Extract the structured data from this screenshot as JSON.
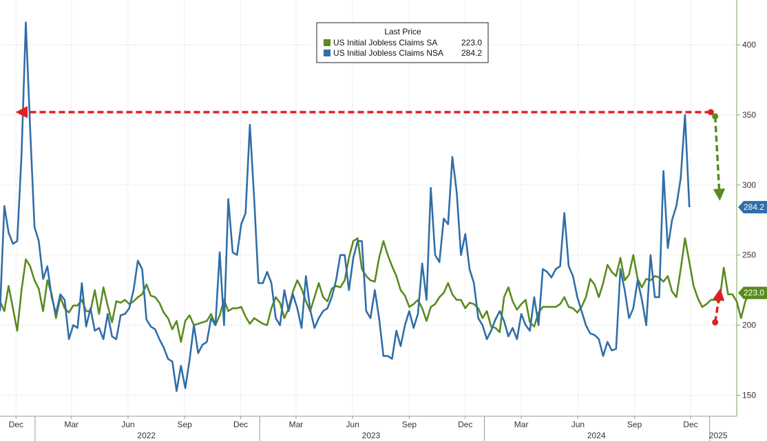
{
  "chart_data": {
    "type": "line",
    "ylim": [
      135,
      432
    ],
    "y_ticks": [
      150,
      200,
      250,
      300,
      350,
      400
    ],
    "x_range": [
      "2021-11-05",
      "2025-02-14"
    ],
    "x_month_ticks": [
      {
        "label": "Dec",
        "date": "2021-12-01"
      },
      {
        "label": "Mar",
        "date": "2022-03-01"
      },
      {
        "label": "Jun",
        "date": "2022-06-01"
      },
      {
        "label": "Sep",
        "date": "2022-09-01"
      },
      {
        "label": "Dec",
        "date": "2022-12-01"
      },
      {
        "label": "Mar",
        "date": "2023-03-01"
      },
      {
        "label": "Jun",
        "date": "2023-06-01"
      },
      {
        "label": "Sep",
        "date": "2023-09-01"
      },
      {
        "label": "Dec",
        "date": "2023-12-01"
      },
      {
        "label": "Mar",
        "date": "2024-03-01"
      },
      {
        "label": "Jun",
        "date": "2024-06-01"
      },
      {
        "label": "Sep",
        "date": "2024-09-01"
      },
      {
        "label": "Dec",
        "date": "2024-12-01"
      }
    ],
    "x_year_labels": [
      {
        "label": "2022",
        "date": "2022-07-01"
      },
      {
        "label": "2023",
        "date": "2023-07-01"
      },
      {
        "label": "2024",
        "date": "2024-07-01"
      },
      {
        "label": "2025",
        "date": "2025-01-15"
      }
    ],
    "x_year_dividers": [
      "2022-01-01",
      "2023-01-01",
      "2024-01-01",
      "2025-01-01"
    ],
    "grid": true,
    "legend": {
      "placement": "top-center",
      "title": "Last Price",
      "entries": [
        {
          "name": "US Initial Jobless Claims SA",
          "last_value": "223.0"
        },
        {
          "name": "US Initial Jobless Claims NSA",
          "last_value": "284.2"
        }
      ]
    },
    "series": [
      {
        "name": "US Initial Jobless Claims SA",
        "color": "#5a8a1e",
        "last_value_label": "223.0",
        "x_start": "2021-11-05",
        "x_step_days": 7,
        "values": [
          217,
          210,
          228,
          212,
          196,
          225,
          247,
          242,
          232,
          226,
          210,
          232,
          222,
          205,
          220,
          212,
          209,
          214,
          214,
          218,
          210,
          210,
          225,
          208,
          227,
          214,
          202,
          217,
          216,
          218,
          215,
          217,
          220,
          222,
          229,
          221,
          220,
          216,
          209,
          205,
          197,
          203,
          188,
          203,
          207,
          200,
          201,
          202,
          203,
          208,
          200,
          207,
          218,
          210,
          212,
          212,
          213,
          206,
          201,
          205,
          203,
          201,
          200,
          212,
          220,
          216,
          205,
          212,
          224,
          232,
          226,
          217,
          210,
          220,
          230,
          220,
          217,
          226,
          228,
          227,
          232,
          248,
          260,
          262,
          240,
          235,
          232,
          231,
          248,
          260,
          250,
          242,
          235,
          225,
          221,
          213,
          215,
          218,
          212,
          203,
          213,
          215,
          220,
          223,
          230,
          222,
          218,
          218,
          212,
          216,
          215,
          212,
          205,
          210,
          199,
          198,
          195,
          220,
          227,
          217,
          211,
          215,
          218,
          202,
          199,
          209,
          213,
          213,
          213,
          213,
          215,
          220,
          213,
          212,
          209,
          213,
          220,
          233,
          229,
          220,
          230,
          243,
          238,
          235,
          248,
          232,
          236,
          250,
          233,
          227,
          233,
          232,
          235,
          234,
          231,
          235,
          224,
          220,
          240,
          262,
          245,
          228,
          219,
          213,
          215,
          218,
          218,
          217,
          241,
          222,
          222,
          217,
          205,
          217,
          223
        ]
      },
      {
        "name": "US Initial Jobless Claims NSA",
        "color": "#2f6ea8",
        "last_value_label": "284.2",
        "x_start": "2021-11-05",
        "x_step_days": 7,
        "values": [
          210,
          285,
          266,
          258,
          260,
          322,
          416,
          340,
          270,
          260,
          233,
          242,
          220,
          208,
          222,
          218,
          190,
          200,
          198,
          230,
          199,
          212,
          196,
          198,
          190,
          208,
          192,
          190,
          207,
          208,
          212,
          225,
          246,
          240,
          204,
          199,
          197,
          190,
          184,
          176,
          174,
          153,
          171,
          155,
          175,
          200,
          180,
          186,
          188,
          205,
          200,
          252,
          200,
          290,
          252,
          250,
          272,
          280,
          343,
          290,
          230,
          230,
          238,
          230,
          205,
          200,
          225,
          210,
          222,
          212,
          198,
          235,
          211,
          198,
          205,
          210,
          212,
          220,
          232,
          250,
          250,
          225,
          248,
          260,
          260,
          210,
          205,
          225,
          205,
          178,
          178,
          176,
          196,
          185,
          200,
          210,
          198,
          208,
          244,
          218,
          298,
          250,
          245,
          276,
          272,
          320,
          295,
          250,
          265,
          240,
          230,
          205,
          200,
          190,
          196,
          204,
          210,
          203,
          192,
          198,
          190,
          208,
          200,
          196,
          220,
          200,
          240,
          238,
          234,
          240,
          242,
          280,
          242,
          235,
          220,
          210,
          200,
          194,
          193,
          190,
          178,
          188,
          182,
          183,
          240,
          225,
          205,
          212,
          232,
          218,
          200,
          250,
          220,
          220,
          310,
          255,
          275,
          285,
          305,
          350,
          284.2
        ]
      }
    ],
    "annotations": [
      {
        "type": "dashed-arrow",
        "color": "#e02020",
        "from": {
          "x": "2025-01-03",
          "y": 352
        },
        "to": {
          "x": "2021-12-10",
          "y": 352
        }
      },
      {
        "type": "dashed-arrow",
        "color": "#5a8a1e",
        "from": {
          "x": "2025-01-10",
          "y": 349
        },
        "to": {
          "x": "2025-01-17",
          "y": 293
        }
      },
      {
        "type": "dashed-arrow",
        "color": "#e02020",
        "from": {
          "x": "2025-01-10",
          "y": 202
        },
        "to": {
          "x": "2025-01-17",
          "y": 222
        }
      }
    ]
  }
}
